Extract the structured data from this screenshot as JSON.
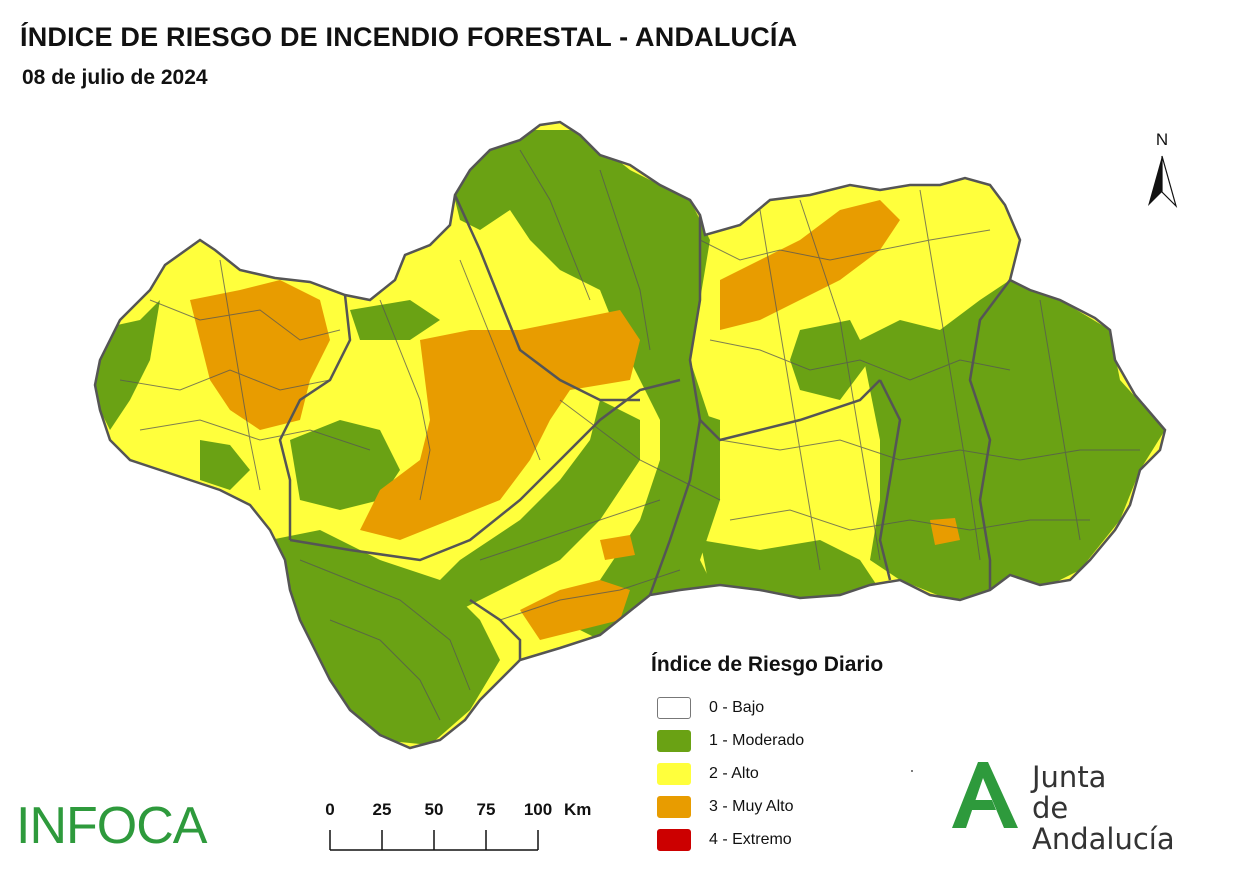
{
  "header": {
    "title": "ÍNDICE DE RIESGO DE INCENDIO FORESTAL - ANDALUCÍA",
    "date": "08 de julio de 2024"
  },
  "north_arrow": {
    "label": "N"
  },
  "legend": {
    "title": "Índice de Riesgo Diario",
    "items": [
      {
        "label": "0 - Bajo",
        "color": "#ffffff"
      },
      {
        "label": "1 - Moderado",
        "color": "#6aa214"
      },
      {
        "label": "2 - Alto",
        "color": "#ffff3c"
      },
      {
        "label": "3 - Muy Alto",
        "color": "#e89c00"
      },
      {
        "label": "4 - Extremo",
        "color": "#cc0000"
      }
    ]
  },
  "scale_bar": {
    "ticks": [
      "0",
      "25",
      "50",
      "75",
      "100"
    ],
    "unit": "Km"
  },
  "logos": {
    "infoca": "INFOCA",
    "junta_line1": "Junta",
    "junta_line2": "de Andalucía",
    "junta_color": "#2e9a3c"
  },
  "map_colors": {
    "moderado": "#6aa214",
    "alto": "#ffff3c",
    "muy_alto": "#e89c00",
    "border": "#555555"
  }
}
